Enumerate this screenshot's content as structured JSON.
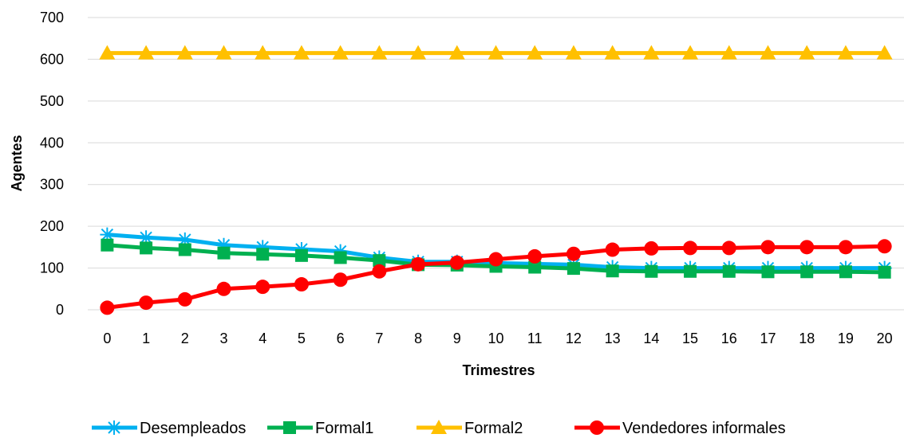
{
  "chart_data": {
    "type": "line",
    "title": "",
    "xlabel": "Trimestres",
    "ylabel": "Agentes",
    "ylim": [
      0,
      700
    ],
    "yticks": [
      0,
      100,
      200,
      300,
      400,
      500,
      600,
      700
    ],
    "grid": true,
    "legend_position": "bottom",
    "x": [
      0,
      1,
      2,
      3,
      4,
      5,
      6,
      7,
      8,
      9,
      10,
      11,
      12,
      13,
      14,
      15,
      16,
      17,
      18,
      19,
      20
    ],
    "series": [
      {
        "name": "Desempleados",
        "color": "#00B0F0",
        "marker": "star",
        "values": [
          180,
          173,
          168,
          155,
          150,
          145,
          140,
          125,
          115,
          115,
          112,
          110,
          108,
          102,
          100,
          100,
          100,
          100,
          100,
          100,
          100
        ]
      },
      {
        "name": "Formal1",
        "color": "#00B050",
        "marker": "square",
        "values": [
          155,
          148,
          144,
          136,
          133,
          130,
          125,
          118,
          108,
          107,
          104,
          102,
          99,
          93,
          92,
          92,
          92,
          91,
          91,
          91,
          90
        ]
      },
      {
        "name": "Formal2",
        "color": "#FFC000",
        "marker": "triangle",
        "values": [
          615,
          615,
          615,
          615,
          615,
          615,
          615,
          615,
          615,
          615,
          615,
          615,
          615,
          615,
          615,
          615,
          615,
          615,
          615,
          615,
          615
        ]
      },
      {
        "name": "Vendedores informales",
        "color": "#FF0000",
        "marker": "circle",
        "values": [
          5,
          17,
          25,
          50,
          55,
          61,
          72,
          92,
          109,
          113,
          121,
          128,
          134,
          144,
          147,
          148,
          148,
          150,
          150,
          150,
          152
        ]
      }
    ]
  }
}
